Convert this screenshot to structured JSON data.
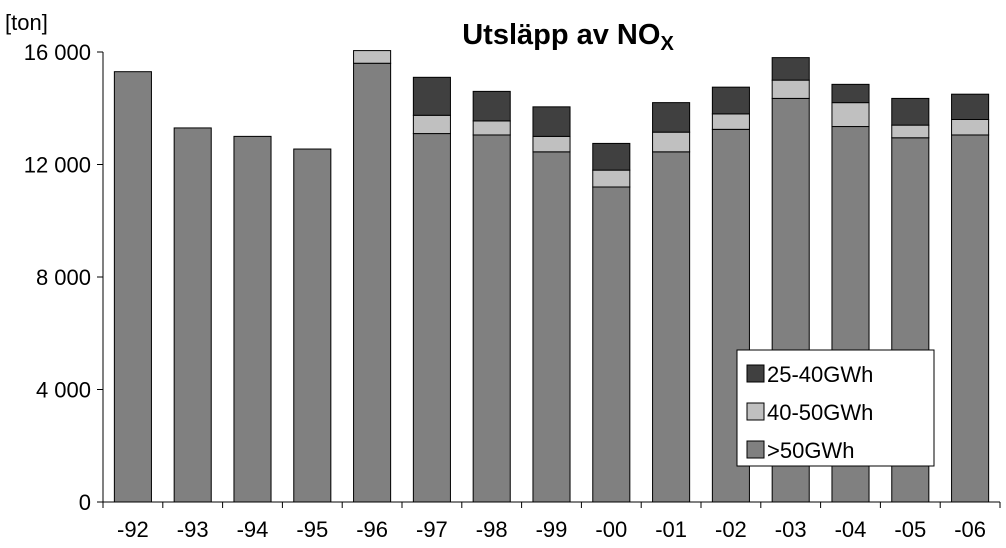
{
  "chart_data": {
    "type": "stacked-bar",
    "title_main": "Utsläpp av NO",
    "title_sub": "X",
    "ylabel": "[ton]",
    "xlabel": "",
    "ylim": [
      0,
      16000
    ],
    "y_ticks": [
      0,
      4000,
      8000,
      12000,
      16000
    ],
    "y_tick_labels": [
      "0",
      "4 000",
      "8 000",
      "12 000",
      "16 000"
    ],
    "grid": false,
    "legend_position": "bottom-right",
    "categories": [
      "-92",
      "-93",
      "-94",
      "-95",
      "-96",
      "-97",
      "-98",
      "-99",
      "-00",
      "-01",
      "-02",
      "-03",
      "-04",
      "-05",
      "-06"
    ],
    "series": [
      {
        "name": ">50GWh",
        "color": "#808080",
        "values": [
          15300,
          13300,
          13000,
          12550,
          15600,
          13100,
          13050,
          12450,
          11200,
          12450,
          13250,
          14350,
          13350,
          12950,
          13050
        ]
      },
      {
        "name": "40-50GWh",
        "color": "#c0c0c0",
        "values": [
          0,
          0,
          0,
          0,
          450,
          650,
          500,
          550,
          600,
          700,
          550,
          650,
          850,
          450,
          550
        ]
      },
      {
        "name": "25-40GWh",
        "color": "#404040",
        "values": [
          0,
          0,
          0,
          0,
          0,
          1350,
          1050,
          1050,
          950,
          1050,
          950,
          800,
          650,
          950,
          900
        ]
      }
    ],
    "legend_order": [
      "25-40GWh",
      "40-50GWh",
      ">50GWh"
    ]
  }
}
